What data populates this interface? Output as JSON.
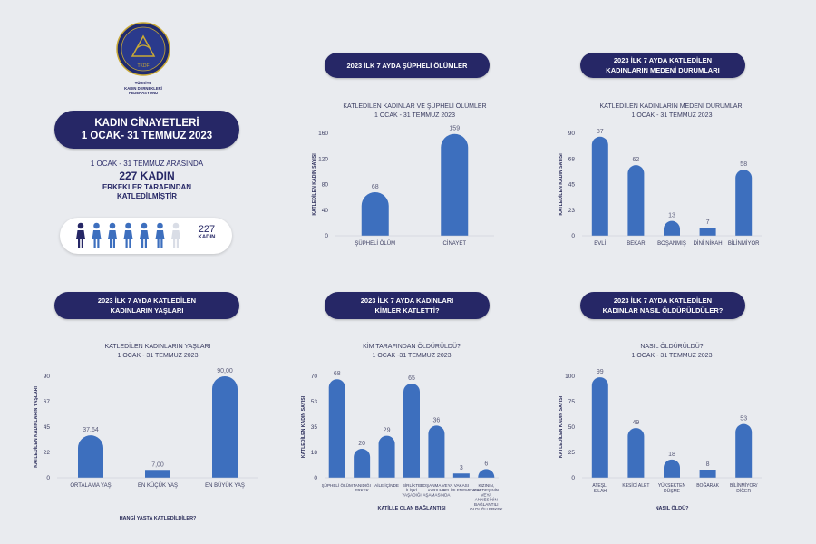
{
  "colors": {
    "navy": "#262766",
    "bar": "#3d6fbe",
    "person_dark": "#262766",
    "person_mid": "#3d6fbe",
    "person_light": "#d9dde6"
  },
  "org": {
    "lines": "TÜRKİYE\nKADIN DERNEKLERİ\nFEDERASYONU",
    "logo_text": "TKDF"
  },
  "main_title": "KADIN CİNAYETLERİ\n1 OCAK- 31 TEMMUZ 2023",
  "summary": {
    "line1": "1 OCAK - 31 TEMMUZ ARASINDA",
    "line2": "227 KADIN",
    "line3": "ERKEKLER TARAFINDAN",
    "line4": "KATLEDİLMİŞTİR"
  },
  "people_box": {
    "count": "227",
    "unit": "KADIN",
    "icon_name": "woman-icon"
  },
  "section_headers": {
    "h1": "2023 İLK 7 AYDA ŞÜPHELİ ÖLÜMLER",
    "h2": "2023 İLK 7 AYDA KATLEDİLEN\nKADINLARIN MEDENİ DURUMLARI",
    "h3": "2023 İLK 7 AYDA KATLEDİLEN\nKADINLARIN YAŞLARI",
    "h4": "2023 İLK 7 AYDA KADINLARI\nKİMLER KATLETTİ?",
    "h5": "2023 İLK 7 AYDA KATLEDİLEN\nKADINLAR NASIL ÖLDÜRÜLDÜLER?"
  },
  "chart_data": [
    {
      "type": "bar",
      "title": "KATLEDİLEN KADINLAR VE ŞÜPHELİ ÖLÜMLER",
      "subtitle": "1 OCAK - 31 TEMMUZ 2023",
      "ylabel": "KATLEDİLEN KADIN SAYISI",
      "xlabel": "",
      "yticks": [
        "0",
        "40",
        "80",
        "120",
        "160"
      ],
      "ylim": [
        0,
        160
      ],
      "categories": [
        "ŞÜPHELİ ÖLÜM",
        "CİNAYET"
      ],
      "values": [
        68,
        159
      ],
      "value_labels": [
        "68",
        "159"
      ]
    },
    {
      "type": "bar",
      "title": "KATLEDİLEN KADINLARIN MEDENİ DURUMLARI",
      "subtitle": "1 OCAK - 31 TEMMUZ 2023",
      "ylabel": "KATLEDİLEN KADIN SAYISI",
      "xlabel": "",
      "yticks": [
        "0",
        "23",
        "45",
        "68",
        "90"
      ],
      "ylim": [
        0,
        90
      ],
      "categories": [
        "EVLİ",
        "BEKAR",
        "BOŞANMIŞ",
        "DİNİ NİKAH",
        "BİLİNMİYOR"
      ],
      "values": [
        87,
        62,
        13,
        7,
        58
      ],
      "value_labels": [
        "87",
        "62",
        "13",
        "7",
        "58"
      ]
    },
    {
      "type": "bar",
      "title": "KATLEDİLEN KADINLARIN YAŞLARI",
      "subtitle": "1 OCAK - 31 TEMMUZ 2023",
      "ylabel": "KATLEDİLEN KADINLARIN YAŞLARI",
      "xlabel": "HANGİ YAŞTA KATLEDİLDİLER?",
      "yticks": [
        "0",
        "22",
        "45",
        "67",
        "90"
      ],
      "ylim": [
        0,
        90
      ],
      "categories": [
        "ORTALAMA YAŞ",
        "EN KÜÇÜK YAŞ",
        "EN BÜYÜK YAŞ"
      ],
      "values": [
        37.64,
        7.0,
        90.0
      ],
      "value_labels": [
        "37,64",
        "7,00",
        "90,00"
      ]
    },
    {
      "type": "bar",
      "title": "KİM TARAFINDAN ÖLDÜRÜLDÜ?",
      "subtitle": "1 OCAK -31 TEMMUZ 2023",
      "ylabel": "KATLEDİLEN KADIN SAYISI",
      "xlabel": "KATİLLE OLAN BAĞLANTISI",
      "yticks": [
        "0",
        "18",
        "35",
        "53",
        "70"
      ],
      "ylim": [
        0,
        70
      ],
      "categories": [
        "ŞÜPHELİ ÖLÜM",
        "TANIDIĞI ERKEK",
        "AİLE İÇİNDE",
        "BİRLİKTE İLİŞKİ YAŞADIĞI",
        "BOŞANMA VEYA AYRILMA AŞAMASINDA",
        "VAKASI BELİRLENEMEYEN",
        "KIZININ, KARDEŞİNİN VEYA ANNESİNİN BAĞLANTILI OLDUĞU ERKEK"
      ],
      "values": [
        68,
        20,
        29,
        65,
        36,
        3,
        6
      ],
      "value_labels": [
        "68",
        "20",
        "29",
        "65",
        "36",
        "3",
        "6"
      ]
    },
    {
      "type": "bar",
      "title": "NASIL ÖLDÜRÜLDÜ?",
      "subtitle": "1 OCAK - 31 TEMMUZ 2023",
      "ylabel": "KATLEDİLEN KADIN SAYISI",
      "xlabel": "NASIL ÖLDÜ?",
      "yticks": [
        "0",
        "25",
        "50",
        "75",
        "100"
      ],
      "ylim": [
        0,
        100
      ],
      "categories": [
        "ATEŞLİ SİLAH",
        "KESİCİ ALET",
        "YÜKSEKTEN DÜŞME",
        "BOĞARAK",
        "BİLİNMİYOR/ DİĞER"
      ],
      "values": [
        99,
        49,
        18,
        8,
        53
      ],
      "value_labels": [
        "99",
        "49",
        "18",
        "8",
        "53"
      ]
    }
  ]
}
